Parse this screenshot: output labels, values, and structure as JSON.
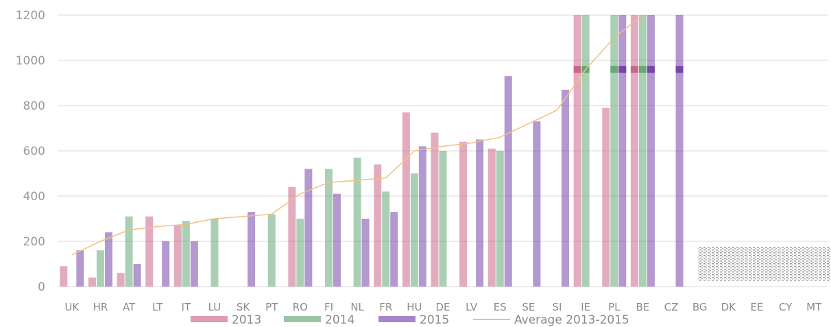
{
  "chart_data": {
    "type": "bar",
    "title": "",
    "xlabel": "",
    "ylabel": "",
    "ylim": [
      0,
      1200
    ],
    "yticks": [
      0,
      200,
      400,
      600,
      800,
      1000,
      1200
    ],
    "grid": true,
    "legend_position": "bottom",
    "categories": [
      "UK",
      "HR",
      "AT",
      "LT",
      "IT",
      "LU",
      "SK",
      "PT",
      "RO",
      "FI",
      "NL",
      "FR",
      "HU",
      "DE",
      "LV",
      "ES",
      "SE",
      "SI",
      "IE",
      "PL",
      "BE",
      "CZ",
      "BG",
      "DK",
      "EE",
      "CY",
      "MT"
    ],
    "series": [
      {
        "name": "2013",
        "type": "bar",
        "color": "#cc6688",
        "values": [
          90,
          40,
          60,
          310,
          270,
          0,
          0,
          0,
          440,
          0,
          0,
          540,
          770,
          680,
          640,
          610,
          0,
          0,
          1200,
          790,
          1200,
          0,
          null,
          null,
          null,
          null,
          null
        ]
      },
      {
        "name": "2014",
        "type": "bar",
        "color": "#66a877",
        "values": [
          0,
          160,
          310,
          0,
          290,
          300,
          0,
          320,
          300,
          520,
          570,
          420,
          500,
          600,
          0,
          600,
          0,
          0,
          1200,
          1200,
          1200,
          0,
          null,
          null,
          null,
          null,
          null
        ]
      },
      {
        "name": "2015",
        "type": "bar",
        "color": "#7744aa",
        "values": [
          160,
          240,
          100,
          200,
          200,
          0,
          330,
          0,
          520,
          410,
          300,
          330,
          620,
          0,
          650,
          930,
          730,
          870,
          0,
          1200,
          1200,
          1200,
          null,
          null,
          null,
          null,
          null
        ]
      },
      {
        "name": "Average 2013-2015",
        "type": "line",
        "color": "#f2c080",
        "values": [
          140,
          200,
          250,
          265,
          275,
          300,
          310,
          320,
          410,
          460,
          470,
          480,
          600,
          620,
          635,
          660,
          720,
          780,
          960,
          1100,
          1200,
          null,
          null,
          null,
          null,
          null,
          null
        ]
      }
    ]
  }
}
